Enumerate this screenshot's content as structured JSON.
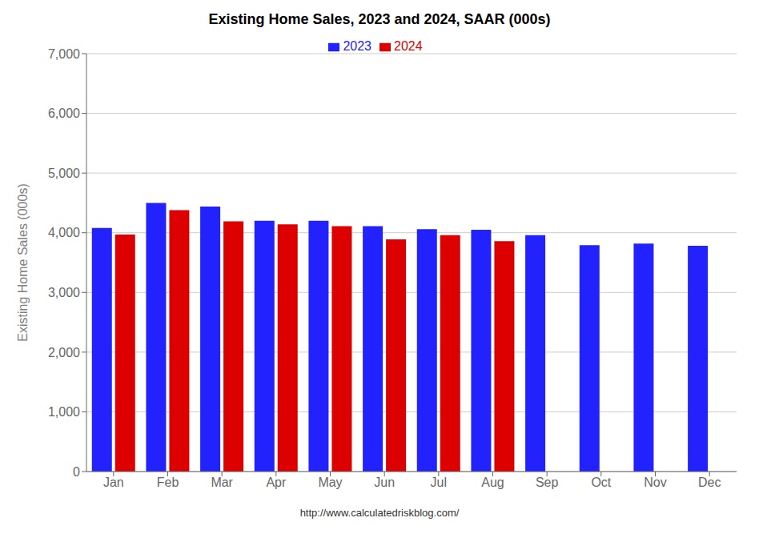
{
  "chart_data": {
    "type": "bar",
    "title": "Existing Home Sales,  2023 and 2024, SAAR (000s)",
    "ylabel": "Existing Home Sales (000s)",
    "annotation": "http://www.calculatedriskblog.com/",
    "categories": [
      "Jan",
      "Feb",
      "Mar",
      "Apr",
      "May",
      "Jun",
      "Jul",
      "Aug",
      "Sep",
      "Oct",
      "Nov",
      "Dec"
    ],
    "series": [
      {
        "name": "2023",
        "color": "#2222ff",
        "values": [
          4080,
          4500,
          4440,
          4200,
          4200,
          4110,
          4060,
          4050,
          3960,
          3790,
          3820,
          3780
        ]
      },
      {
        "name": "2024",
        "color": "#dd0000",
        "values": [
          3970,
          4380,
          4190,
          4140,
          4110,
          3890,
          3960,
          3860,
          null,
          null,
          null,
          null
        ]
      }
    ],
    "ylim": [
      0,
      7000
    ],
    "yticks": [
      0,
      {
        "value": 1000,
        "label": "1,000"
      },
      {
        "value": 2000,
        "label": "2,000"
      },
      {
        "value": 3000,
        "label": "3,000"
      },
      {
        "value": 4000,
        "label": "4,000"
      },
      {
        "value": 5000,
        "label": "5,000"
      },
      {
        "value": 6000,
        "label": "6,000"
      },
      {
        "value": 7000,
        "label": "7,000"
      }
    ],
    "grid": true,
    "legend": "top"
  }
}
